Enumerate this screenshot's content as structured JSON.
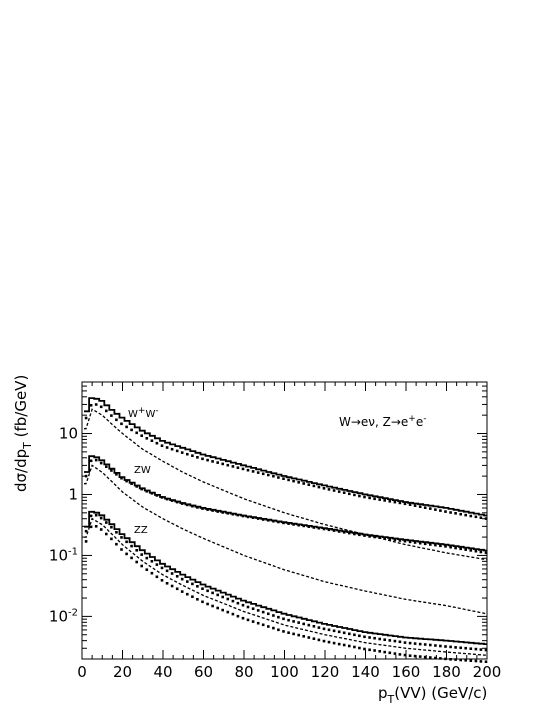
{
  "chart_data": {
    "type": "line",
    "title": "",
    "xlabel": {
      "main": "p",
      "sub": "T",
      "rest": "(VV) (GeV/c)"
    },
    "ylabel": {
      "main": "dσ/dp",
      "sub": "T",
      "rest": " (fb/GeV)"
    },
    "xlim": [
      0,
      200
    ],
    "ylim": [
      0.002,
      70
    ],
    "yscale": "log",
    "grid": false,
    "x_ticks": [
      0,
      20,
      40,
      60,
      80,
      100,
      120,
      140,
      160,
      180,
      200
    ],
    "x_tick_labels": [
      "0",
      "20",
      "40",
      "60",
      "80",
      "100",
      "120",
      "140",
      "160",
      "180",
      "200"
    ],
    "y_ticks": [
      {
        "value": 10,
        "base": "10",
        "exp": ""
      },
      {
        "value": 1,
        "base": "1",
        "exp": ""
      },
      {
        "value": 0.1,
        "base": "10",
        "exp": "-1"
      },
      {
        "value": 0.01,
        "base": "10",
        "exp": "-2"
      }
    ],
    "annotations": [
      {
        "id": "ww",
        "base": "W",
        "sup1": "+",
        "mid": "W",
        "sup2": "-",
        "x": 24,
        "y": 22
      },
      {
        "id": "zw",
        "text": "ZW",
        "x": 26,
        "y": 2.0
      },
      {
        "id": "zz",
        "text": "ZZ",
        "x": 26,
        "y": 0.22
      }
    ],
    "info_text": {
      "part1": "W→eν, Z→e",
      "sup1": "+",
      "part2": "e",
      "sup2": "-"
    },
    "series": [
      {
        "group": "WW",
        "style": "solid-histogram",
        "x": [
          2,
          5,
          10,
          15,
          20,
          30,
          40,
          50,
          60,
          80,
          100,
          120,
          140,
          160,
          180,
          200
        ],
        "y": [
          22,
          40,
          34,
          24,
          18,
          11,
          7.5,
          5.8,
          4.5,
          3.0,
          2.0,
          1.4,
          1.0,
          0.75,
          0.6,
          0.45
        ]
      },
      {
        "group": "WW",
        "style": "dotted",
        "x": [
          2,
          5,
          10,
          15,
          20,
          30,
          40,
          50,
          60,
          80,
          100,
          120,
          140,
          160,
          180,
          200
        ],
        "y": [
          18,
          32,
          27,
          19,
          14,
          9.0,
          6.2,
          4.8,
          3.8,
          2.6,
          1.8,
          1.25,
          0.9,
          0.7,
          0.52,
          0.4
        ]
      },
      {
        "group": "WW",
        "style": "dashed",
        "x": [
          2,
          5,
          10,
          15,
          20,
          30,
          40,
          50,
          60,
          80,
          100,
          120,
          140,
          160,
          180,
          200
        ],
        "y": [
          12,
          25,
          20,
          14,
          10,
          5.5,
          3.5,
          2.3,
          1.6,
          0.85,
          0.5,
          0.32,
          0.22,
          0.15,
          0.11,
          0.085
        ]
      },
      {
        "group": "ZW",
        "style": "solid-histogram",
        "x": [
          2,
          5,
          10,
          15,
          20,
          30,
          40,
          50,
          60,
          80,
          100,
          120,
          140,
          160,
          180,
          200
        ],
        "y": [
          2.2,
          4.5,
          3.6,
          2.6,
          1.9,
          1.25,
          0.9,
          0.72,
          0.6,
          0.45,
          0.35,
          0.28,
          0.22,
          0.18,
          0.15,
          0.12
        ]
      },
      {
        "group": "ZW",
        "style": "dotted",
        "x": [
          2,
          5,
          10,
          15,
          20,
          30,
          40,
          50,
          60,
          80,
          100,
          120,
          140,
          160,
          180,
          200
        ],
        "y": [
          2.0,
          4.0,
          3.2,
          2.4,
          1.8,
          1.2,
          0.88,
          0.7,
          0.58,
          0.44,
          0.34,
          0.27,
          0.21,
          0.17,
          0.14,
          0.11
        ]
      },
      {
        "group": "ZW",
        "style": "dashed",
        "x": [
          2,
          5,
          10,
          15,
          20,
          30,
          40,
          50,
          60,
          80,
          100,
          120,
          140,
          160,
          180,
          200
        ],
        "y": [
          1.5,
          3.0,
          2.3,
          1.6,
          1.1,
          0.62,
          0.4,
          0.27,
          0.19,
          0.1,
          0.058,
          0.037,
          0.026,
          0.019,
          0.015,
          0.011
        ]
      },
      {
        "group": "ZZ",
        "style": "solid-histogram",
        "x": [
          2,
          5,
          10,
          15,
          20,
          30,
          40,
          50,
          60,
          80,
          100,
          120,
          140,
          160,
          180,
          200
        ],
        "y": [
          0.28,
          0.55,
          0.45,
          0.32,
          0.22,
          0.12,
          0.072,
          0.048,
          0.033,
          0.018,
          0.011,
          0.0075,
          0.0055,
          0.0045,
          0.004,
          0.0035
        ]
      },
      {
        "group": "ZZ",
        "style": "dotted",
        "x": [
          2,
          5,
          10,
          15,
          20,
          30,
          40,
          50,
          60,
          80,
          100,
          120,
          140,
          160,
          180,
          200
        ],
        "y": [
          0.25,
          0.5,
          0.4,
          0.28,
          0.19,
          0.1,
          0.061,
          0.04,
          0.028,
          0.015,
          0.009,
          0.0062,
          0.0046,
          0.0037,
          0.0032,
          0.0028
        ]
      },
      {
        "group": "ZZ",
        "style": "dashed",
        "x": [
          2,
          5,
          10,
          15,
          20,
          30,
          40,
          50,
          60,
          80,
          100,
          120,
          140,
          160,
          180,
          200
        ],
        "y": [
          0.2,
          0.4,
          0.32,
          0.22,
          0.15,
          0.08,
          0.048,
          0.032,
          0.022,
          0.012,
          0.0072,
          0.005,
          0.0037,
          0.003,
          0.0026,
          0.0023
        ]
      },
      {
        "group": "ZZ",
        "style": "dotted",
        "x": [
          2,
          5,
          10,
          15,
          20,
          30,
          40,
          50,
          60,
          80,
          100,
          120,
          140,
          160,
          180,
          200
        ],
        "y": [
          0.17,
          0.33,
          0.26,
          0.18,
          0.12,
          0.065,
          0.038,
          0.025,
          0.017,
          0.0092,
          0.0056,
          0.0039,
          0.0029,
          0.0023,
          0.002,
          0.0018
        ]
      }
    ]
  }
}
